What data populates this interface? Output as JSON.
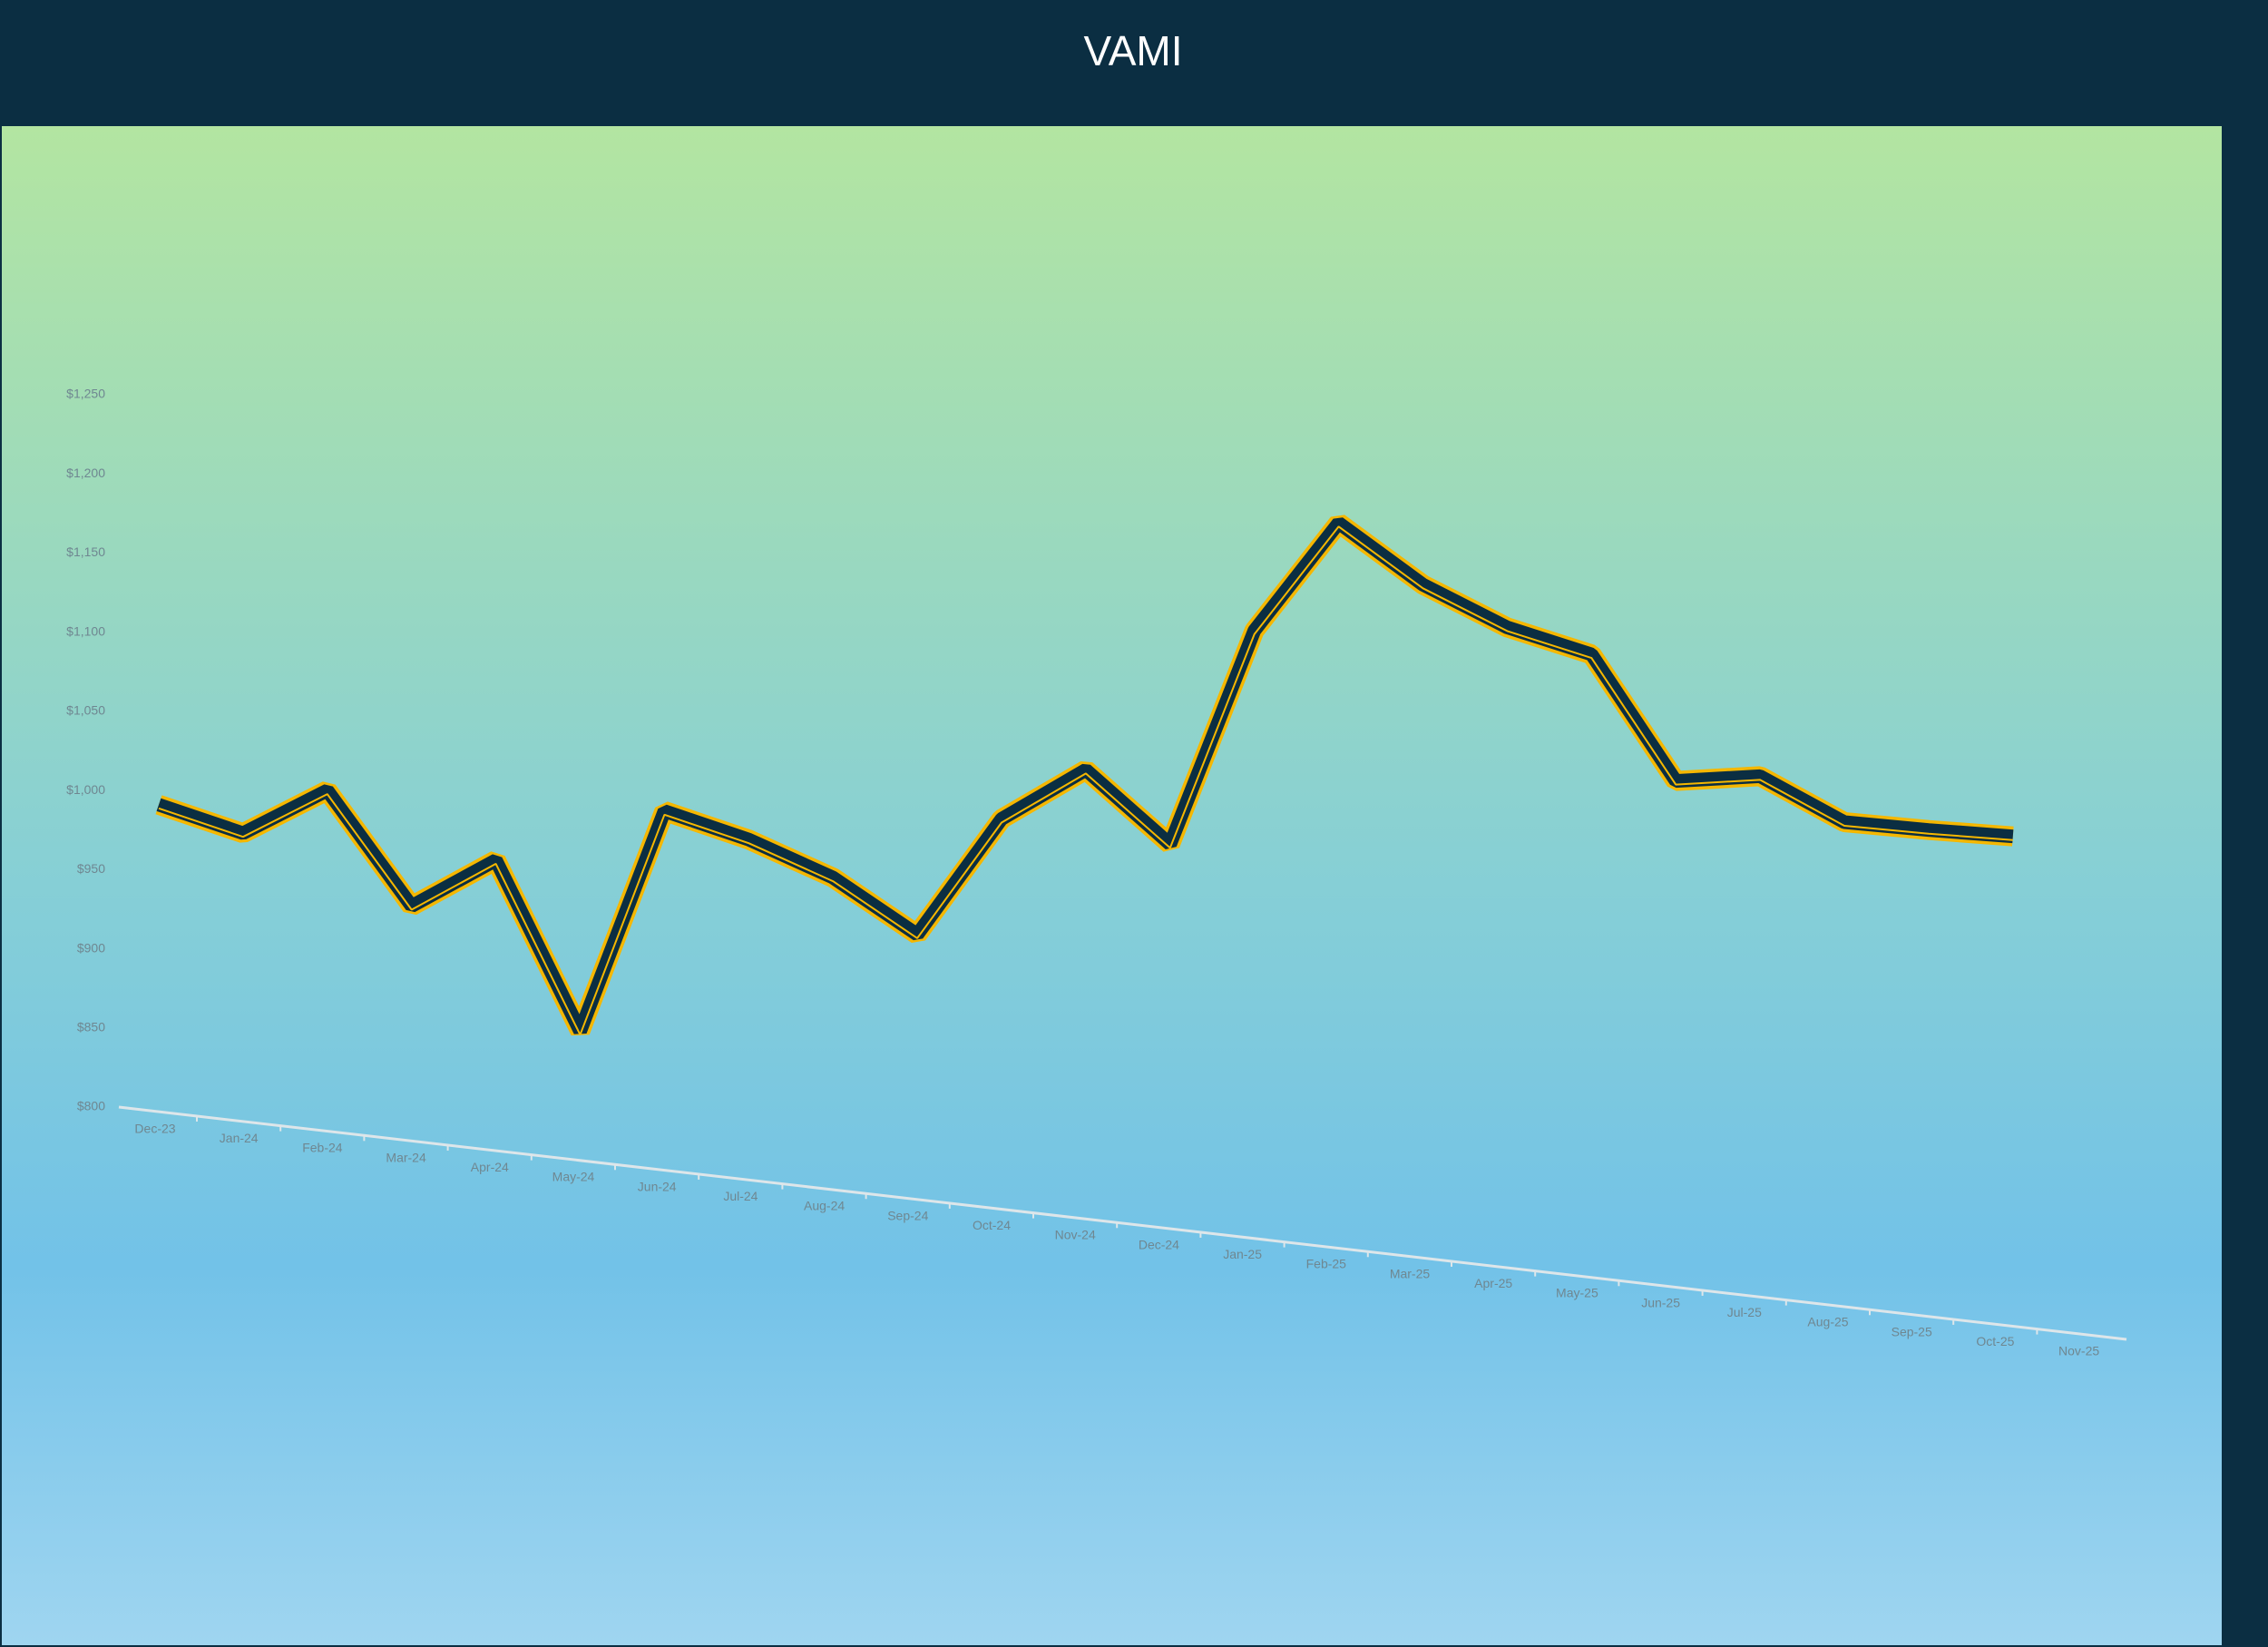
{
  "chart_data": {
    "type": "line",
    "title": "VAMI",
    "categories": [
      "Dec-23",
      "Jan-24",
      "Feb-24",
      "Mar-24",
      "Apr-24",
      "May-24",
      "Jun-24",
      "Jul-24",
      "Aug-24",
      "Sep-24",
      "Oct-24",
      "Nov-24",
      "Dec-24",
      "Jan-25",
      "Feb-25",
      "Mar-25",
      "Apr-25",
      "May-25",
      "Jun-25",
      "Jul-25",
      "Aug-25",
      "Sep-25",
      "Oct-25",
      "Nov-25"
    ],
    "series": [
      {
        "name": "VAMI",
        "color": "#0b2e42",
        "edge_color": "#f5b700",
        "values": [
          991,
          973,
          1000,
          927,
          956,
          848,
          987,
          969,
          945,
          909,
          982,
          1013,
          966,
          1101,
          1169,
          1130,
          1103,
          1086,
          1006,
          1009,
          980,
          975,
          971,
          null
        ]
      }
    ],
    "ylim": [
      800,
      1250
    ],
    "yticks": [
      {
        "value": 800,
        "label": "$800"
      },
      {
        "value": 850,
        "label": "$850"
      },
      {
        "value": 900,
        "label": "$900"
      },
      {
        "value": 950,
        "label": "$950"
      },
      {
        "value": 1000,
        "label": "$1,000"
      },
      {
        "value": 1050,
        "label": "$1,050"
      },
      {
        "value": 1100,
        "label": "$1,100"
      },
      {
        "value": 1150,
        "label": "$1,150"
      },
      {
        "value": 1200,
        "label": "$1,200"
      },
      {
        "value": 1250,
        "label": "$1,250"
      }
    ],
    "grid": false
  }
}
